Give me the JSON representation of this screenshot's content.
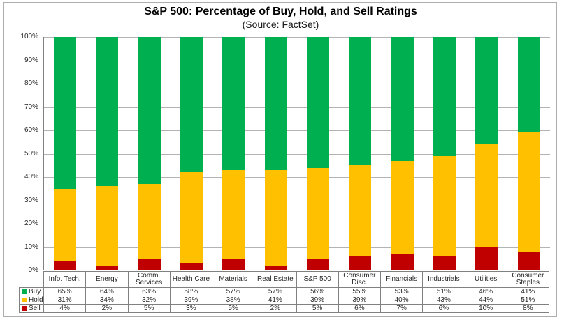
{
  "header": {
    "title": "S&P 500: Percentage of Buy, Hold, and Sell Ratings",
    "subtitle": "(Source: FactSet)"
  },
  "chart_data": {
    "type": "bar",
    "stacked": true,
    "title": "S&P 500: Percentage of Buy, Hold, and Sell Ratings",
    "subtitle": "(Source: FactSet)",
    "xlabel": "",
    "ylabel": "",
    "ylim": [
      0,
      100
    ],
    "grid": true,
    "legend_position": "data-table-left",
    "value_suffix": "%",
    "y_ticks": [
      "100%",
      "90%",
      "80%",
      "70%",
      "60%",
      "50%",
      "40%",
      "30%",
      "20%",
      "10%",
      "0%"
    ],
    "categories": [
      "Info. Tech.",
      "Energy",
      "Comm. Services",
      "Health Care",
      "Materials",
      "Real Estate",
      "S&P 500",
      "Consumer Disc.",
      "Financials",
      "Industrials",
      "Utilities",
      "Consumer Staples"
    ],
    "series": [
      {
        "name": "Buy",
        "color": "#00B050",
        "values": [
          65,
          64,
          63,
          58,
          57,
          57,
          56,
          55,
          53,
          51,
          46,
          41
        ]
      },
      {
        "name": "Hold",
        "color": "#FFC000",
        "values": [
          31,
          34,
          32,
          39,
          38,
          41,
          39,
          39,
          40,
          43,
          44,
          51
        ]
      },
      {
        "name": "Sell",
        "color": "#C00000",
        "values": [
          4,
          2,
          5,
          3,
          5,
          2,
          5,
          6,
          7,
          6,
          10,
          8
        ]
      }
    ]
  }
}
